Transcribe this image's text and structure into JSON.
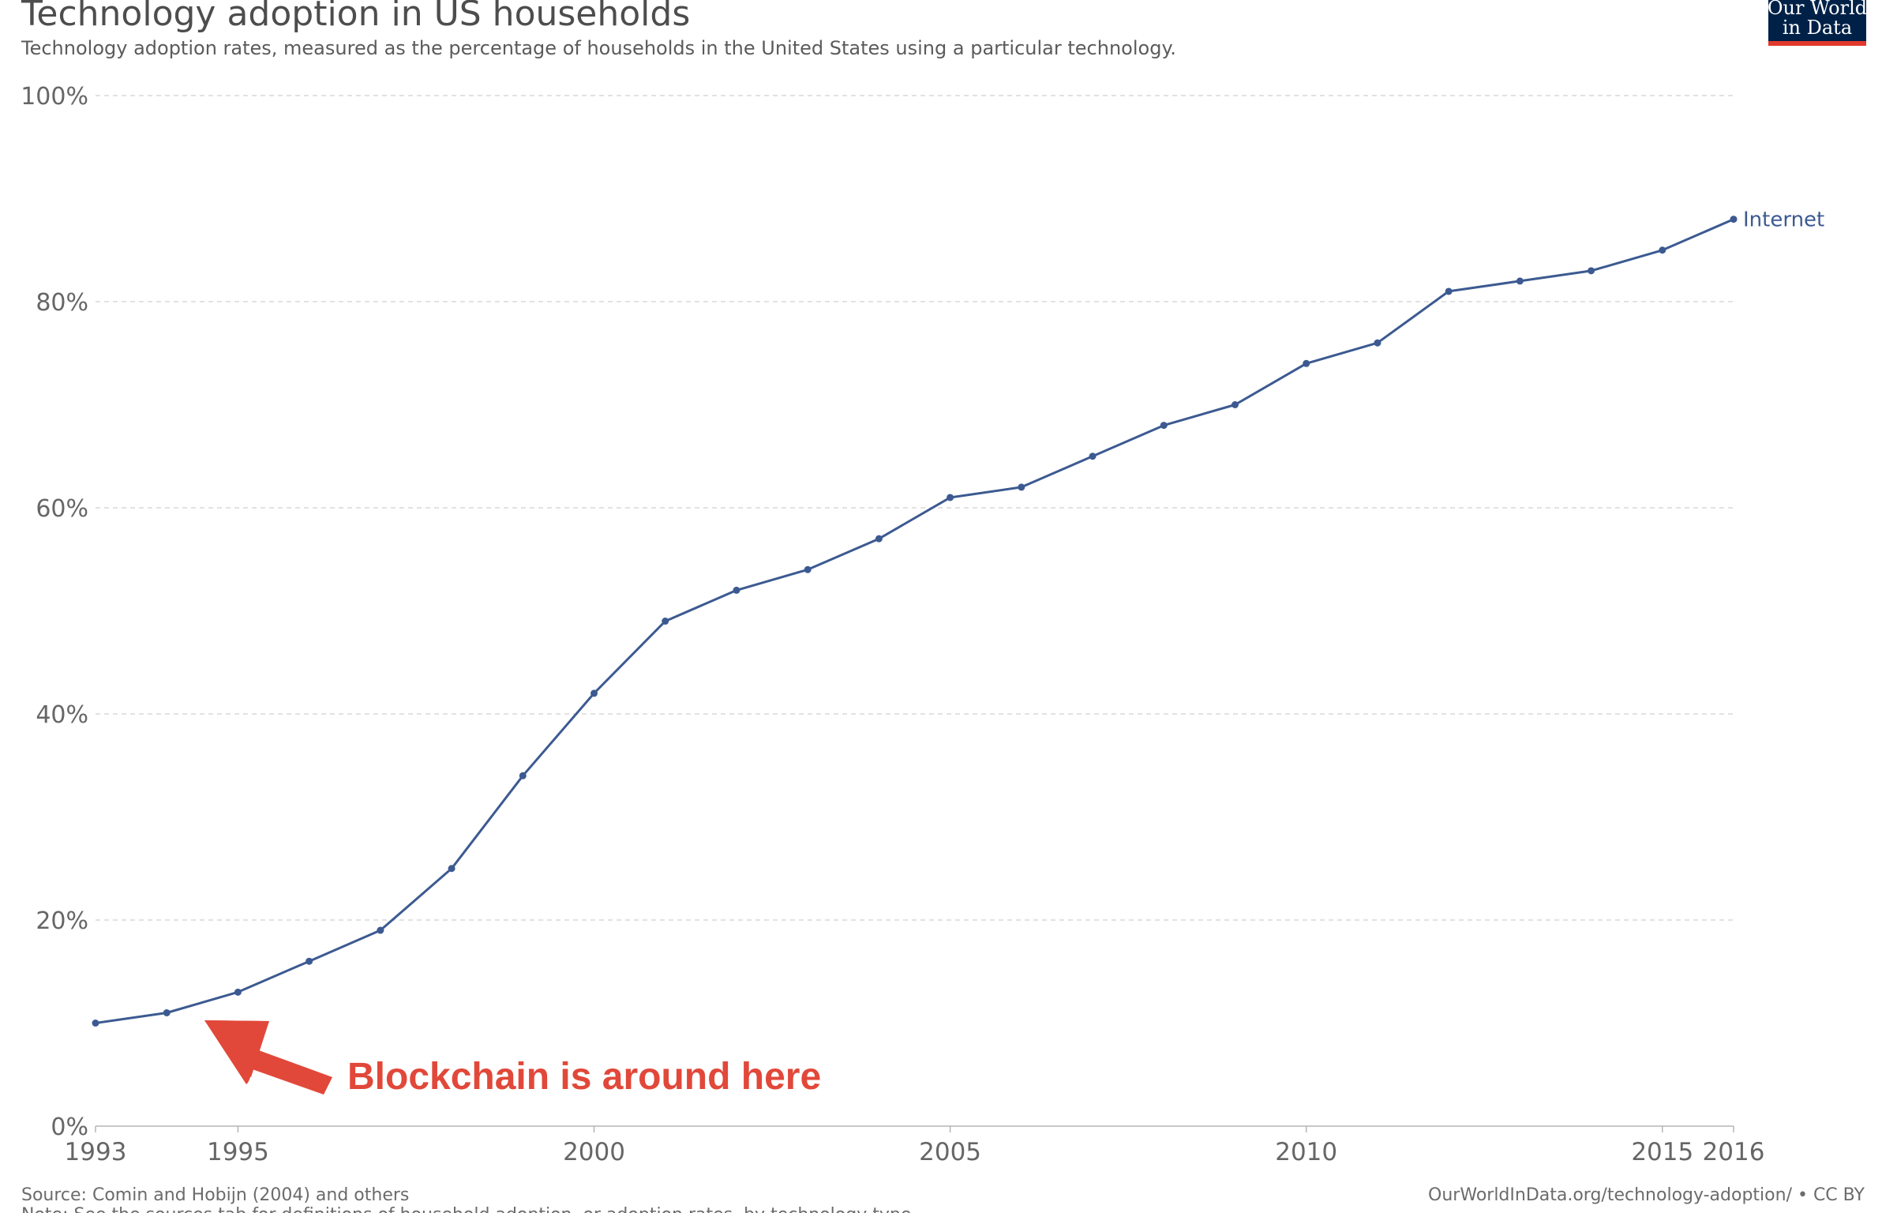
{
  "header": {
    "title": "Technology adoption in US households",
    "subtitle": "Technology adoption rates, measured as the percentage of households in the United States using a particular technology."
  },
  "logo": {
    "line1": "Our World",
    "line2": "in Data",
    "background": "#002147",
    "accent": "#e1392b"
  },
  "annotation": {
    "text": "Blockchain is around here",
    "color": "#e1483a"
  },
  "footer": {
    "source": "Source: Comin and Hobijn (2004) and others",
    "note": "Note: See the sources tab for definitions of household adoption, or adoption rates, by technology type.",
    "attribution": "OurWorldInData.org/technology-adoption/ • CC BY"
  },
  "chart_data": {
    "type": "line",
    "title": "Technology adoption in US households",
    "subtitle": "Technology adoption rates, measured as the percentage of households in the United States using a particular technology.",
    "xlim": [
      1993,
      2016
    ],
    "ylim": [
      0,
      100
    ],
    "x_ticks": [
      1993,
      1995,
      2000,
      2005,
      2010,
      2015,
      2016
    ],
    "y_ticks": [
      {
        "value": 0,
        "label": "0%"
      },
      {
        "value": 20,
        "label": "20%"
      },
      {
        "value": 40,
        "label": "40%"
      },
      {
        "value": 60,
        "label": "60%"
      },
      {
        "value": 80,
        "label": "80%"
      },
      {
        "value": 100,
        "label": "100%"
      }
    ],
    "grid": true,
    "legend": "end-of-line label",
    "series": [
      {
        "name": "Internet",
        "color": "#3c5a91",
        "x": [
          1993,
          1994,
          1995,
          1996,
          1997,
          1998,
          1999,
          2000,
          2001,
          2002,
          2003,
          2004,
          2005,
          2006,
          2007,
          2008,
          2009,
          2010,
          2011,
          2012,
          2013,
          2014,
          2015,
          2016
        ],
        "values": [
          10,
          11,
          13,
          16,
          19,
          25,
          34,
          42,
          49,
          52,
          54,
          57,
          61,
          62,
          65,
          68,
          70,
          74,
          76,
          81,
          82,
          83,
          85,
          88
        ]
      }
    ]
  }
}
